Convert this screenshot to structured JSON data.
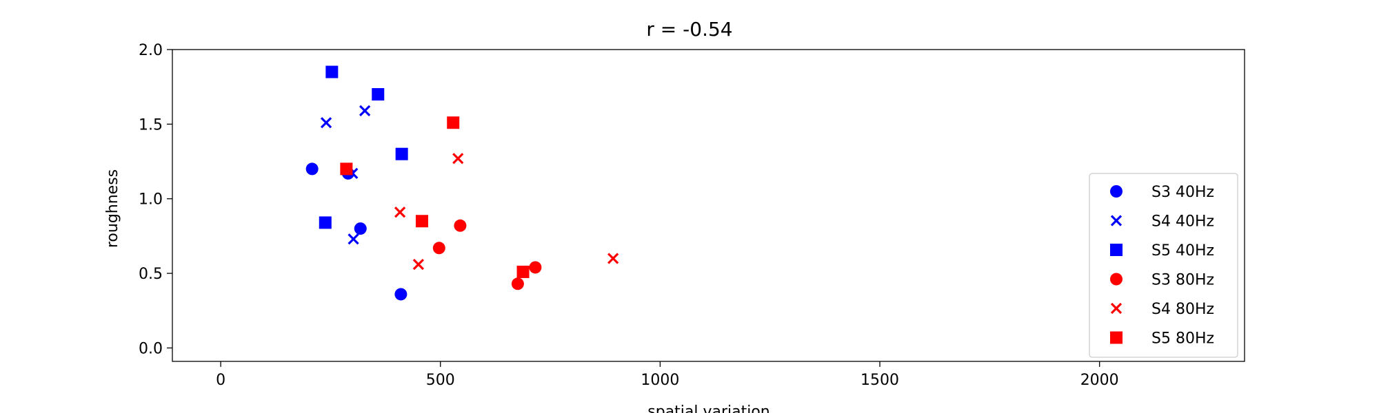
{
  "chart_data": {
    "type": "scatter",
    "title": "r = -0.54",
    "xlabel": "spatial variation",
    "ylabel": "roughness",
    "xlim": [
      -110,
      2330
    ],
    "ylim": [
      -0.09,
      2.0
    ],
    "xticks": [
      0,
      500,
      1000,
      1500,
      2000
    ],
    "yticks": [
      0.0,
      0.5,
      1.0,
      1.5,
      2.0
    ],
    "xtick_labels": [
      "0",
      "500",
      "1000",
      "1500",
      "2000"
    ],
    "ytick_labels": [
      "0.0",
      "0.5",
      "1.0",
      "1.5",
      "2.0"
    ],
    "grid": false,
    "legend_position": "lower right",
    "series": [
      {
        "name": "S3 40Hz",
        "color": "#0000ff",
        "marker": "circle",
        "points": [
          [
            208,
            1.2
          ],
          [
            290,
            1.17
          ],
          [
            318,
            0.8
          ],
          [
            410,
            0.36
          ]
        ]
      },
      {
        "name": "S4 40Hz",
        "color": "#0000ff",
        "marker": "x",
        "points": [
          [
            240,
            1.51
          ],
          [
            300,
            1.17
          ],
          [
            302,
            0.73
          ],
          [
            328,
            1.59
          ]
        ]
      },
      {
        "name": "S5 40Hz",
        "color": "#0000ff",
        "marker": "square",
        "points": [
          [
            253,
            1.85
          ],
          [
            238,
            0.84
          ],
          [
            358,
            1.7
          ],
          [
            412,
            1.3
          ]
        ]
      },
      {
        "name": "S3 80Hz",
        "color": "#ff0000",
        "marker": "circle",
        "points": [
          [
            497,
            0.67
          ],
          [
            545,
            0.82
          ],
          [
            676,
            0.43
          ],
          [
            716,
            0.54
          ]
        ]
      },
      {
        "name": "S4 80Hz",
        "color": "#ff0000",
        "marker": "x",
        "points": [
          [
            408,
            0.91
          ],
          [
            450,
            0.56
          ],
          [
            540,
            1.27
          ],
          [
            893,
            0.6
          ]
        ]
      },
      {
        "name": "S5 80Hz",
        "color": "#ff0000",
        "marker": "square",
        "points": [
          [
            286,
            1.2
          ],
          [
            458,
            0.85
          ],
          [
            529,
            1.51
          ],
          [
            688,
            0.51
          ]
        ]
      }
    ]
  }
}
